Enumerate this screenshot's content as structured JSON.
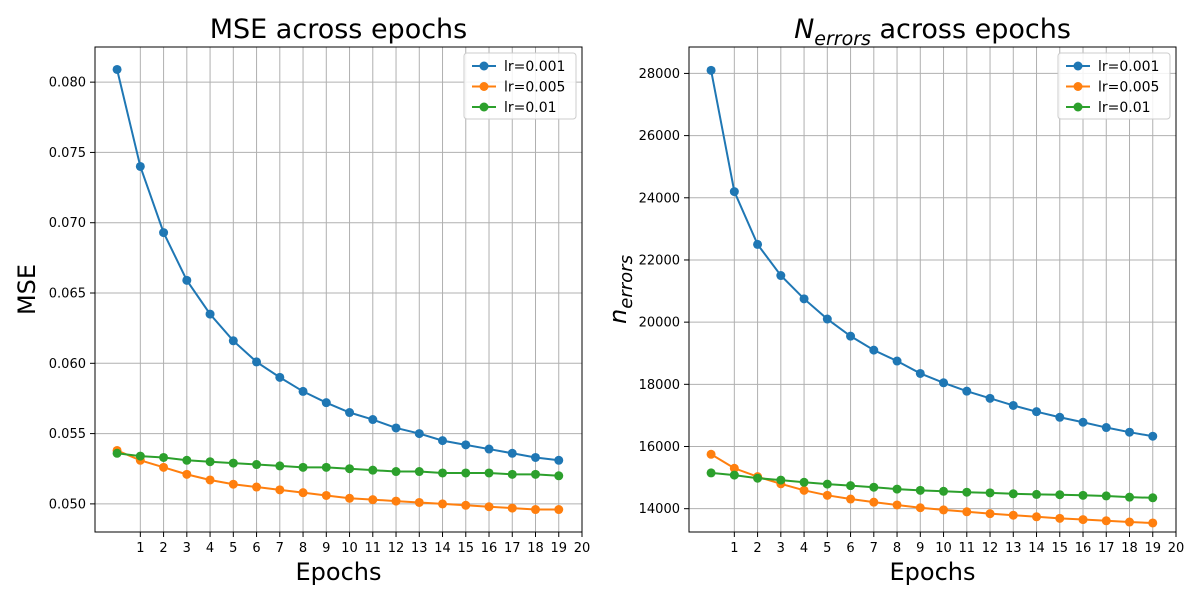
{
  "chart_data": [
    {
      "type": "line",
      "title": "MSE across epochs",
      "xlabel": "Epochs",
      "ylabel": "MSE",
      "x": [
        0,
        1,
        2,
        3,
        4,
        5,
        6,
        7,
        8,
        9,
        10,
        11,
        12,
        13,
        14,
        15,
        16,
        17,
        18,
        19
      ],
      "xticks": [
        1,
        2,
        3,
        4,
        5,
        6,
        7,
        8,
        9,
        10,
        11,
        12,
        13,
        14,
        15,
        16,
        17,
        18,
        19,
        20
      ],
      "xlim": [
        -0.95,
        20.0
      ],
      "ylim": [
        0.048,
        0.0825
      ],
      "yticks": [
        0.05,
        0.055,
        0.06,
        0.065,
        0.07,
        0.075,
        0.08
      ],
      "ytick_labels": [
        "0.050",
        "0.055",
        "0.060",
        "0.065",
        "0.070",
        "0.075",
        "0.080"
      ],
      "grid": true,
      "legend_position": "top-right",
      "series": [
        {
          "name": "lr=0.001",
          "color": "#1f77b4",
          "values": [
            0.0809,
            0.074,
            0.0693,
            0.0659,
            0.0635,
            0.0616,
            0.0601,
            0.059,
            0.058,
            0.0572,
            0.0565,
            0.056,
            0.0554,
            0.055,
            0.0545,
            0.0542,
            0.0539,
            0.0536,
            0.0533,
            0.0531
          ]
        },
        {
          "name": "lr=0.005",
          "color": "#ff7f0e",
          "values": [
            0.0538,
            0.0531,
            0.0526,
            0.0521,
            0.0517,
            0.0514,
            0.0512,
            0.051,
            0.0508,
            0.0506,
            0.0504,
            0.0503,
            0.0502,
            0.0501,
            0.05,
            0.0499,
            0.0498,
            0.0497,
            0.0496,
            0.0496
          ]
        },
        {
          "name": "lr=0.01",
          "color": "#2ca02c",
          "values": [
            0.0536,
            0.0534,
            0.0533,
            0.0531,
            0.053,
            0.0529,
            0.0528,
            0.0527,
            0.0526,
            0.0526,
            0.0525,
            0.0524,
            0.0523,
            0.0523,
            0.0522,
            0.0522,
            0.0522,
            0.0521,
            0.0521,
            0.052
          ]
        }
      ]
    },
    {
      "type": "line",
      "title_base": "N",
      "title_sub": "errors",
      "title_rest": " across epochs",
      "xlabel": "Epochs",
      "ylabel_base": "n",
      "ylabel_sub": "errors",
      "x": [
        0,
        1,
        2,
        3,
        4,
        5,
        6,
        7,
        8,
        9,
        10,
        11,
        12,
        13,
        14,
        15,
        16,
        17,
        18,
        19
      ],
      "xticks": [
        1,
        2,
        3,
        4,
        5,
        6,
        7,
        8,
        9,
        10,
        11,
        12,
        13,
        14,
        15,
        16,
        17,
        18,
        19,
        20
      ],
      "xlim": [
        -0.95,
        20.0
      ],
      "ylim": [
        13250,
        28850
      ],
      "yticks": [
        14000,
        16000,
        18000,
        20000,
        22000,
        24000,
        26000,
        28000
      ],
      "ytick_labels": [
        "14000",
        "16000",
        "18000",
        "20000",
        "22000",
        "24000",
        "26000",
        "28000"
      ],
      "grid": true,
      "legend_position": "top-right",
      "series": [
        {
          "name": "lr=0.001",
          "color": "#1f77b4",
          "values": [
            28100,
            24200,
            22500,
            21500,
            20750,
            20100,
            19550,
            19100,
            18750,
            18350,
            18050,
            17780,
            17550,
            17320,
            17120,
            16940,
            16780,
            16610,
            16460,
            16330
          ]
        },
        {
          "name": "lr=0.005",
          "color": "#ff7f0e",
          "values": [
            15750,
            15300,
            15030,
            14800,
            14590,
            14430,
            14310,
            14210,
            14120,
            14030,
            13960,
            13900,
            13840,
            13790,
            13740,
            13690,
            13650,
            13610,
            13570,
            13540
          ]
        },
        {
          "name": "lr=0.01",
          "color": "#2ca02c",
          "values": [
            15150,
            15080,
            14980,
            14920,
            14850,
            14790,
            14740,
            14690,
            14630,
            14590,
            14560,
            14530,
            14510,
            14480,
            14460,
            14450,
            14430,
            14410,
            14370,
            14350
          ]
        }
      ]
    }
  ]
}
